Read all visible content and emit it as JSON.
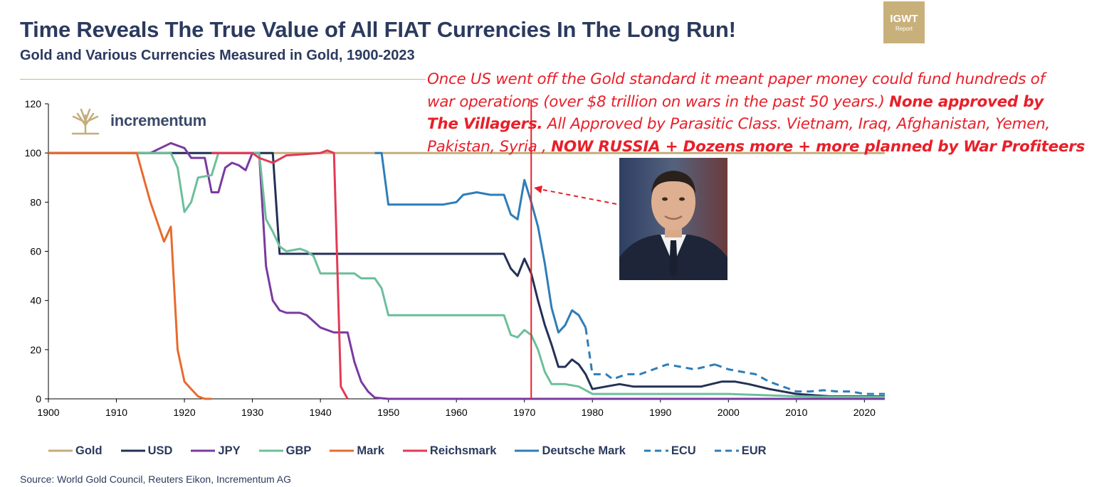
{
  "header": {
    "title": "Time Reveals The True Value of All FIAT Currencies In The Long Run!",
    "subtitle": "Gold and Various Currencies Measured in Gold, 1900-2023"
  },
  "logo": {
    "line1": "IGWT",
    "line2": "Report"
  },
  "brand": {
    "name": "incrementum"
  },
  "annotation": {
    "line1": "Once US went off the Gold standard it meant paper money could fund hundreds of",
    "line2_normal": "war operations (over $8 trillion on wars in the past 50 years.) ",
    "line2_bold": "None approved by",
    "line3_bold": "The Villagers.",
    "line3_normal": " All Approved by Parasitic Class. Vietnam, Iraq, Afghanistan, Yemen,",
    "line4_normal": "Pakistan, Syria , ",
    "line4_bold": "NOW RUSSIA + Dozens more + more planned by War Profiteers"
  },
  "source": "Source: World Gold Council, Reuters Eikon, Incrementum AG",
  "colors": {
    "Gold": "#c3ad7c",
    "USD": "#243156",
    "Deutsche Mark": "#2e7db8",
    "ECU": "#2e7db8",
    "EUR": "#2e7db8",
    "GBP": "#6cbf9a",
    "JPY": "#7a3aa0",
    "Mark": "#e86a2e",
    "Reichsmark": "#e23a56",
    "marker": "#e8202a",
    "axis": "#000000"
  },
  "chart_data": {
    "type": "line",
    "title": "Gold and Various Currencies Measured in Gold, 1900-2023",
    "xlabel": "",
    "ylabel": "",
    "xlim": [
      1900,
      2023
    ],
    "ylim": [
      0,
      120
    ],
    "xticks": [
      1900,
      1910,
      1920,
      1930,
      1940,
      1950,
      1960,
      1970,
      1980,
      1990,
      2000,
      2010,
      2020
    ],
    "yticks": [
      0,
      20,
      40,
      60,
      80,
      100,
      120
    ],
    "marker_year": 1971,
    "legend_position": "bottom",
    "series": [
      {
        "name": "Gold",
        "style": "solid",
        "points": [
          [
            1900,
            100
          ],
          [
            2023,
            100
          ]
        ]
      },
      {
        "name": "USD",
        "style": "solid",
        "points": [
          [
            1900,
            100
          ],
          [
            1933,
            100
          ],
          [
            1934,
            59
          ],
          [
            1967,
            59
          ],
          [
            1968,
            53
          ],
          [
            1969,
            50
          ],
          [
            1970,
            57
          ],
          [
            1971,
            51
          ],
          [
            1972,
            40
          ],
          [
            1973,
            30
          ],
          [
            1974,
            22
          ],
          [
            1975,
            13
          ],
          [
            1976,
            13
          ],
          [
            1977,
            16
          ],
          [
            1978,
            14
          ],
          [
            1979,
            10
          ],
          [
            1980,
            4
          ],
          [
            1982,
            5
          ],
          [
            1984,
            6
          ],
          [
            1986,
            5
          ],
          [
            1988,
            5
          ],
          [
            1990,
            5
          ],
          [
            1993,
            5
          ],
          [
            1996,
            5
          ],
          [
            1999,
            7
          ],
          [
            2001,
            7
          ],
          [
            2003,
            6
          ],
          [
            2006,
            4
          ],
          [
            2010,
            2
          ],
          [
            2015,
            1
          ],
          [
            2020,
            1
          ],
          [
            2023,
            1
          ]
        ]
      },
      {
        "name": "JPY",
        "style": "solid",
        "points": [
          [
            1900,
            100
          ],
          [
            1910,
            100
          ],
          [
            1915,
            100
          ],
          [
            1918,
            104
          ],
          [
            1920,
            102
          ],
          [
            1921,
            98
          ],
          [
            1922,
            98
          ],
          [
            1923,
            98
          ],
          [
            1924,
            84
          ],
          [
            1925,
            84
          ],
          [
            1926,
            94
          ],
          [
            1927,
            96
          ],
          [
            1928,
            95
          ],
          [
            1929,
            93
          ],
          [
            1930,
            100
          ],
          [
            1931,
            100
          ],
          [
            1932,
            54
          ],
          [
            1933,
            40
          ],
          [
            1934,
            36
          ],
          [
            1935,
            35
          ],
          [
            1937,
            35
          ],
          [
            1938,
            34
          ],
          [
            1940,
            29
          ],
          [
            1941,
            28
          ],
          [
            1942,
            27
          ],
          [
            1943,
            27
          ],
          [
            1944,
            27
          ],
          [
            1945,
            15
          ],
          [
            1946,
            7
          ],
          [
            1947,
            3
          ],
          [
            1948,
            0.5
          ],
          [
            1950,
            0
          ],
          [
            2023,
            0
          ]
        ]
      },
      {
        "name": "GBP",
        "style": "solid",
        "points": [
          [
            1900,
            100
          ],
          [
            1914,
            100
          ],
          [
            1918,
            100
          ],
          [
            1919,
            94
          ],
          [
            1920,
            76
          ],
          [
            1921,
            80
          ],
          [
            1922,
            90
          ],
          [
            1924,
            91
          ],
          [
            1925,
            100
          ],
          [
            1931,
            100
          ],
          [
            1932,
            73
          ],
          [
            1933,
            68
          ],
          [
            1934,
            62
          ],
          [
            1935,
            60
          ],
          [
            1937,
            61
          ],
          [
            1938,
            60
          ],
          [
            1939,
            58
          ],
          [
            1940,
            51
          ],
          [
            1945,
            51
          ],
          [
            1946,
            49
          ],
          [
            1947,
            49
          ],
          [
            1948,
            49
          ],
          [
            1949,
            45
          ],
          [
            1950,
            34
          ],
          [
            1967,
            34
          ],
          [
            1968,
            26
          ],
          [
            1969,
            25
          ],
          [
            1970,
            28
          ],
          [
            1971,
            26
          ],
          [
            1972,
            20
          ],
          [
            1973,
            11
          ],
          [
            1974,
            6
          ],
          [
            1976,
            6
          ],
          [
            1978,
            5
          ],
          [
            1980,
            2
          ],
          [
            1985,
            2
          ],
          [
            1990,
            2
          ],
          [
            1995,
            2
          ],
          [
            2000,
            2
          ],
          [
            2005,
            1.5
          ],
          [
            2010,
            1
          ],
          [
            2015,
            0.8
          ],
          [
            2020,
            0.8
          ],
          [
            2023,
            0.8
          ]
        ]
      },
      {
        "name": "Mark",
        "style": "solid",
        "points": [
          [
            1900,
            100
          ],
          [
            1913,
            100
          ],
          [
            1914,
            90
          ],
          [
            1915,
            80
          ],
          [
            1917,
            64
          ],
          [
            1918,
            70
          ],
          [
            1919,
            20
          ],
          [
            1920,
            7
          ],
          [
            1921,
            4
          ],
          [
            1922,
            1
          ],
          [
            1923,
            0
          ],
          [
            1924,
            0
          ]
        ]
      },
      {
        "name": "Reichsmark",
        "style": "solid",
        "points": [
          [
            1924,
            100
          ],
          [
            1930,
            100
          ],
          [
            1931,
            98
          ],
          [
            1933,
            96
          ],
          [
            1935,
            99
          ],
          [
            1940,
            100
          ],
          [
            1941,
            101
          ],
          [
            1942,
            100
          ],
          [
            1943,
            5
          ],
          [
            1944,
            0
          ]
        ]
      },
      {
        "name": "Deutsche Mark",
        "style": "solid",
        "points": [
          [
            1948,
            100
          ],
          [
            1949,
            100
          ],
          [
            1950,
            79
          ],
          [
            1958,
            79
          ],
          [
            1960,
            80
          ],
          [
            1961,
            83
          ],
          [
            1963,
            84
          ],
          [
            1965,
            83
          ],
          [
            1967,
            83
          ],
          [
            1968,
            75
          ],
          [
            1969,
            73
          ],
          [
            1970,
            89
          ],
          [
            1971,
            80
          ],
          [
            1972,
            70
          ],
          [
            1973,
            55
          ],
          [
            1974,
            37
          ],
          [
            1975,
            27
          ],
          [
            1976,
            30
          ],
          [
            1977,
            36
          ],
          [
            1978,
            34
          ],
          [
            1979,
            29
          ]
        ]
      },
      {
        "name": "ECU",
        "style": "dashed",
        "points": [
          [
            1979,
            29
          ],
          [
            1980,
            10
          ],
          [
            1981,
            10
          ],
          [
            1982,
            10
          ],
          [
            1983,
            8
          ],
          [
            1985,
            10
          ],
          [
            1987,
            10
          ],
          [
            1989,
            12
          ],
          [
            1991,
            14
          ],
          [
            1993,
            13
          ],
          [
            1995,
            12
          ],
          [
            1998,
            14
          ]
        ]
      },
      {
        "name": "EUR",
        "style": "dashed",
        "points": [
          [
            1998,
            14
          ],
          [
            2000,
            12
          ],
          [
            2002,
            11
          ],
          [
            2004,
            10
          ],
          [
            2006,
            7
          ],
          [
            2008,
            5
          ],
          [
            2010,
            3
          ],
          [
            2012,
            3
          ],
          [
            2014,
            3.5
          ],
          [
            2016,
            3
          ],
          [
            2018,
            3
          ],
          [
            2020,
            2
          ],
          [
            2023,
            2
          ]
        ]
      }
    ]
  }
}
